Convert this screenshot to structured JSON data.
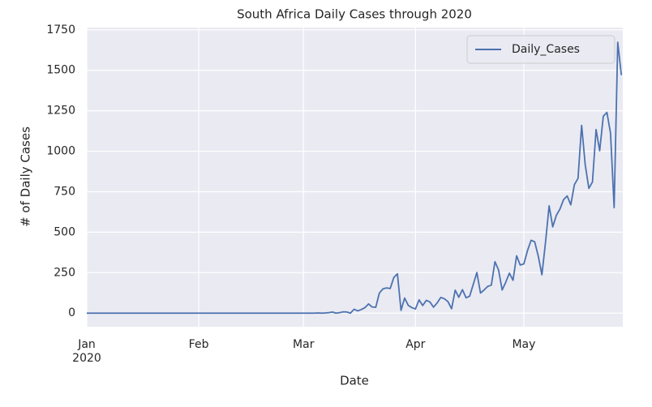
{
  "chart_data": {
    "type": "line",
    "title": "South Africa Daily Cases through 2020",
    "xlabel": "Date",
    "ylabel": "# of Daily Cases",
    "series": [
      {
        "name": "Daily_Cases",
        "color": "#4c72b0",
        "values": [
          0,
          0,
          0,
          0,
          0,
          0,
          0,
          0,
          0,
          0,
          0,
          0,
          0,
          0,
          0,
          0,
          0,
          0,
          0,
          0,
          0,
          0,
          0,
          0,
          0,
          0,
          0,
          0,
          0,
          0,
          0,
          0,
          0,
          0,
          0,
          0,
          0,
          0,
          0,
          0,
          0,
          0,
          0,
          0,
          0,
          0,
          0,
          0,
          0,
          0,
          0,
          0,
          0,
          0,
          0,
          0,
          0,
          0,
          0,
          0,
          0,
          0,
          0,
          0,
          1,
          0,
          1,
          3,
          7,
          0,
          3,
          8,
          7,
          0,
          24,
          14,
          22,
          34,
          57,
          38,
          36,
          124,
          150,
          156,
          152,
          220,
          243,
          17,
          93,
          48,
          34,
          26,
          82,
          47,
          79,
          69,
          37,
          63,
          97,
          89,
          71,
          27,
          142,
          98,
          145,
          95,
          105,
          178,
          251,
          124,
          143,
          165,
          173,
          318,
          267,
          143,
          191,
          247,
          203,
          354,
          297,
          304,
          385,
          450,
          441,
          352,
          237,
          437,
          663,
          533,
          604,
          643,
          701,
          724,
          669,
          794,
          832,
          1160,
          915,
          771,
          810,
          1134,
          1003,
          1216,
          1240,
          1112,
          652,
          1673,
          1470
        ]
      }
    ],
    "xlim": [
      0,
      148.4
    ],
    "xticks": [
      {
        "value": 0,
        "label": "Jan\n2020"
      },
      {
        "value": 31,
        "label": "Feb"
      },
      {
        "value": 60,
        "label": "Mar"
      },
      {
        "value": 91,
        "label": "Apr"
      },
      {
        "value": 121,
        "label": "May"
      }
    ],
    "ylim": [
      -84,
      1764
    ],
    "yticks": [
      0,
      250,
      500,
      750,
      1000,
      1250,
      1500,
      1750
    ],
    "grid": true,
    "legend": "upper right"
  }
}
